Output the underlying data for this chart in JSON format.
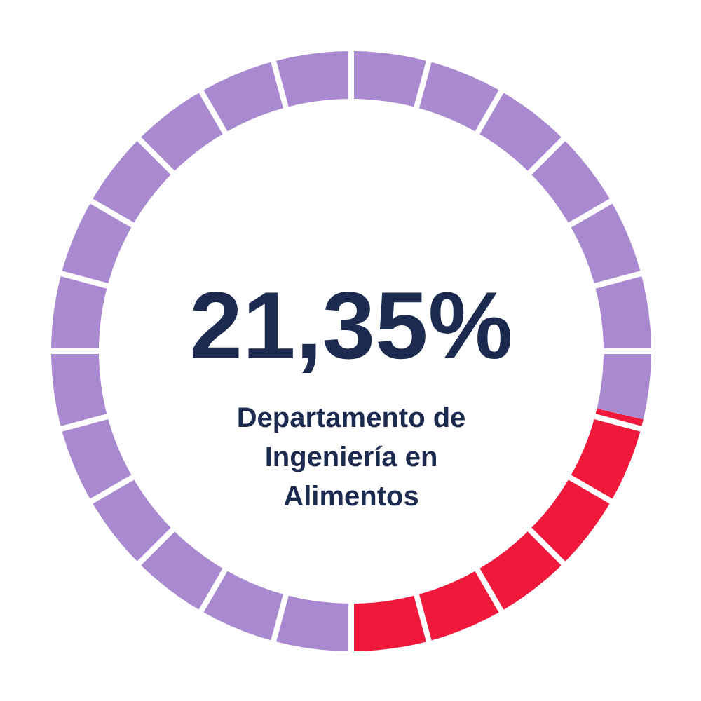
{
  "chart_data": {
    "type": "donut",
    "title": "21,35%",
    "subtitle": "Departamento de\nIngeniería en\nAlimentos",
    "categories": [
      null,
      null
    ],
    "values": [
      21.35,
      78.65
    ],
    "colors": [
      "#f0193c",
      "#a98ad0"
    ]
  }
}
